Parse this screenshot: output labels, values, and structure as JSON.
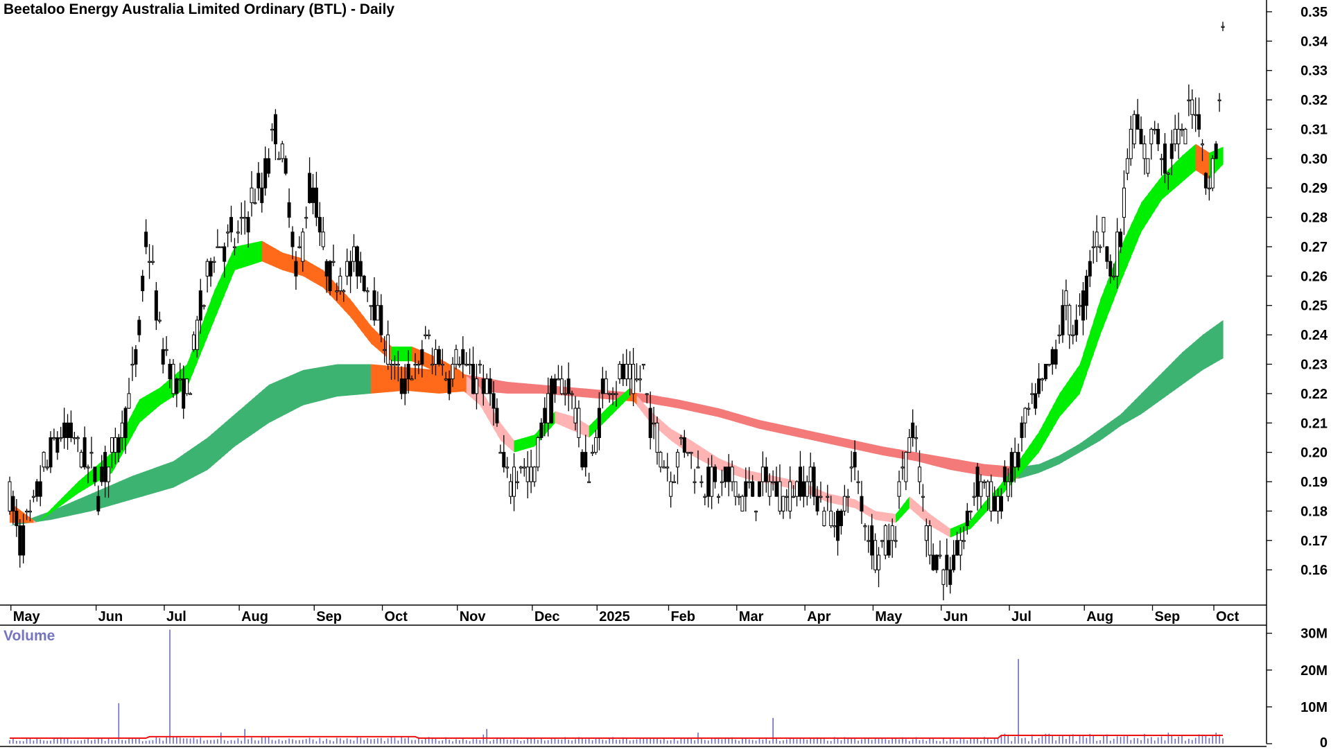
{
  "chart_data": {
    "type": "candlestick",
    "title": "Beetaloo Energy Australia Limited Ordinary (BTL) - Daily",
    "volume_label": "Volume",
    "price_axis": {
      "side": "right",
      "ticks": [
        "0.35",
        "0.34",
        "0.33",
        "0.32",
        "0.31",
        "0.30",
        "0.29",
        "0.28",
        "0.27",
        "0.26",
        "0.25",
        "0.24",
        "0.23",
        "0.22",
        "0.21",
        "0.20",
        "0.19",
        "0.18",
        "0.17",
        "0.16"
      ],
      "ylim": [
        0.148,
        0.354
      ]
    },
    "volume_axis": {
      "side": "right",
      "ticks": [
        "30M",
        "20M",
        "10M",
        "0"
      ],
      "ylim_millions": [
        0,
        32
      ]
    },
    "month_labels": [
      "May",
      "Jun",
      "Jul",
      "Aug",
      "Sep",
      "Oct",
      "Nov",
      "Dec",
      "2025",
      "Feb",
      "Mar",
      "Apr",
      "May",
      "Jun",
      "Jul",
      "Aug",
      "Sep",
      "Oct"
    ],
    "price_path": [
      [
        0,
        0.185
      ],
      [
        3,
        0.17
      ],
      [
        6,
        0.177
      ],
      [
        10,
        0.193
      ],
      [
        14,
        0.205
      ],
      [
        18,
        0.207
      ],
      [
        22,
        0.198
      ],
      [
        26,
        0.188
      ],
      [
        30,
        0.198
      ],
      [
        34,
        0.213
      ],
      [
        38,
        0.24
      ],
      [
        40,
        0.272
      ],
      [
        42,
        0.262
      ],
      [
        44,
        0.24
      ],
      [
        48,
        0.225
      ],
      [
        52,
        0.218
      ],
      [
        56,
        0.248
      ],
      [
        60,
        0.268
      ],
      [
        64,
        0.272
      ],
      [
        68,
        0.275
      ],
      [
        72,
        0.288
      ],
      [
        74,
        0.288
      ],
      [
        76,
        0.3
      ],
      [
        78,
        0.31
      ],
      [
        80,
        0.3
      ],
      [
        82,
        0.285
      ],
      [
        84,
        0.26
      ],
      [
        86,
        0.272
      ],
      [
        88,
        0.29
      ],
      [
        90,
        0.285
      ],
      [
        92,
        0.268
      ],
      [
        94,
        0.26
      ],
      [
        98,
        0.262
      ],
      [
        102,
        0.265
      ],
      [
        106,
        0.255
      ],
      [
        108,
        0.245
      ],
      [
        110,
        0.24
      ],
      [
        112,
        0.23
      ],
      [
        114,
        0.225
      ],
      [
        116,
        0.222
      ],
      [
        118,
        0.23
      ],
      [
        120,
        0.225
      ],
      [
        122,
        0.242
      ],
      [
        124,
        0.23
      ],
      [
        126,
        0.235
      ],
      [
        128,
        0.225
      ],
      [
        130,
        0.23
      ],
      [
        132,
        0.235
      ],
      [
        134,
        0.228
      ],
      [
        136,
        0.225
      ],
      [
        138,
        0.228
      ],
      [
        140,
        0.22
      ],
      [
        142,
        0.22
      ],
      [
        144,
        0.2
      ],
      [
        146,
        0.19
      ],
      [
        148,
        0.192
      ],
      [
        150,
        0.196
      ],
      [
        152,
        0.192
      ],
      [
        154,
        0.193
      ],
      [
        156,
        0.208
      ],
      [
        158,
        0.215
      ],
      [
        160,
        0.22
      ],
      [
        162,
        0.225
      ],
      [
        164,
        0.222
      ],
      [
        166,
        0.215
      ],
      [
        168,
        0.2
      ],
      [
        170,
        0.192
      ],
      [
        172,
        0.205
      ],
      [
        174,
        0.22
      ],
      [
        176,
        0.225
      ],
      [
        178,
        0.222
      ],
      [
        180,
        0.228
      ],
      [
        182,
        0.225
      ],
      [
        184,
        0.222
      ],
      [
        186,
        0.228
      ],
      [
        188,
        0.21
      ],
      [
        190,
        0.205
      ],
      [
        192,
        0.198
      ],
      [
        194,
        0.192
      ],
      [
        196,
        0.2
      ],
      [
        198,
        0.205
      ],
      [
        200,
        0.2
      ],
      [
        202,
        0.194
      ],
      [
        204,
        0.19
      ],
      [
        208,
        0.188
      ],
      [
        212,
        0.19
      ],
      [
        216,
        0.185
      ],
      [
        220,
        0.188
      ],
      [
        224,
        0.19
      ],
      [
        228,
        0.185
      ],
      [
        232,
        0.19
      ],
      [
        236,
        0.188
      ],
      [
        240,
        0.18
      ],
      [
        244,
        0.175
      ],
      [
        246,
        0.19
      ],
      [
        248,
        0.195
      ],
      [
        250,
        0.182
      ],
      [
        252,
        0.172
      ],
      [
        254,
        0.168
      ],
      [
        256,
        0.168
      ],
      [
        258,
        0.17
      ],
      [
        260,
        0.175
      ],
      [
        262,
        0.195
      ],
      [
        264,
        0.2
      ],
      [
        266,
        0.205
      ],
      [
        268,
        0.18
      ],
      [
        270,
        0.17
      ],
      [
        272,
        0.165
      ],
      [
        274,
        0.16
      ],
      [
        276,
        0.158
      ],
      [
        278,
        0.165
      ],
      [
        280,
        0.17
      ],
      [
        282,
        0.18
      ],
      [
        284,
        0.19
      ],
      [
        286,
        0.19
      ],
      [
        288,
        0.185
      ],
      [
        290,
        0.18
      ],
      [
        292,
        0.19
      ],
      [
        294,
        0.192
      ],
      [
        296,
        0.2
      ],
      [
        298,
        0.21
      ],
      [
        300,
        0.215
      ],
      [
        302,
        0.22
      ],
      [
        304,
        0.225
      ],
      [
        306,
        0.23
      ],
      [
        308,
        0.24
      ],
      [
        310,
        0.25
      ],
      [
        312,
        0.242
      ],
      [
        314,
        0.245
      ],
      [
        316,
        0.255
      ],
      [
        318,
        0.27
      ],
      [
        320,
        0.275
      ],
      [
        322,
        0.27
      ],
      [
        324,
        0.262
      ],
      [
        326,
        0.272
      ],
      [
        328,
        0.3
      ],
      [
        330,
        0.312
      ],
      [
        332,
        0.305
      ],
      [
        334,
        0.3
      ],
      [
        336,
        0.31
      ],
      [
        338,
        0.302
      ],
      [
        340,
        0.295
      ],
      [
        342,
        0.308
      ],
      [
        344,
        0.305
      ],
      [
        346,
        0.315
      ],
      [
        348,
        0.318
      ],
      [
        350,
        0.305
      ],
      [
        352,
        0.29
      ],
      [
        354,
        0.302
      ],
      [
        355,
        0.325
      ],
      [
        356,
        0.343
      ]
    ],
    "emas": {
      "fast_top": [
        [
          0,
          0.183
        ],
        [
          8,
          0.176
        ],
        [
          20,
          0.19
        ],
        [
          30,
          0.2
        ],
        [
          38,
          0.218
        ],
        [
          44,
          0.222
        ],
        [
          52,
          0.23
        ],
        [
          60,
          0.255
        ],
        [
          66,
          0.27
        ],
        [
          74,
          0.272
        ],
        [
          80,
          0.268
        ],
        [
          86,
          0.266
        ],
        [
          92,
          0.262
        ],
        [
          100,
          0.252
        ],
        [
          106,
          0.243
        ],
        [
          112,
          0.236
        ],
        [
          118,
          0.236
        ],
        [
          126,
          0.232
        ],
        [
          132,
          0.228
        ],
        [
          138,
          0.222
        ],
        [
          144,
          0.21
        ],
        [
          148,
          0.204
        ],
        [
          154,
          0.206
        ],
        [
          160,
          0.214
        ],
        [
          166,
          0.212
        ],
        [
          170,
          0.209
        ],
        [
          176,
          0.216
        ],
        [
          182,
          0.222
        ],
        [
          188,
          0.214
        ],
        [
          194,
          0.208
        ],
        [
          200,
          0.204
        ],
        [
          208,
          0.198
        ],
        [
          216,
          0.194
        ],
        [
          224,
          0.192
        ],
        [
          232,
          0.19
        ],
        [
          240,
          0.186
        ],
        [
          248,
          0.184
        ],
        [
          254,
          0.18
        ],
        [
          260,
          0.179
        ],
        [
          264,
          0.185
        ],
        [
          270,
          0.179
        ],
        [
          276,
          0.174
        ],
        [
          282,
          0.177
        ],
        [
          286,
          0.183
        ],
        [
          290,
          0.188
        ],
        [
          296,
          0.197
        ],
        [
          302,
          0.207
        ],
        [
          308,
          0.22
        ],
        [
          314,
          0.23
        ],
        [
          320,
          0.252
        ],
        [
          326,
          0.27
        ],
        [
          332,
          0.285
        ],
        [
          338,
          0.294
        ],
        [
          344,
          0.301
        ],
        [
          348,
          0.305
        ],
        [
          352,
          0.302
        ],
        [
          356,
          0.304
        ]
      ],
      "fast_bottom": [
        [
          0,
          0.176
        ],
        [
          8,
          0.176
        ],
        [
          20,
          0.186
        ],
        [
          30,
          0.193
        ],
        [
          38,
          0.21
        ],
        [
          44,
          0.216
        ],
        [
          52,
          0.222
        ],
        [
          60,
          0.245
        ],
        [
          66,
          0.262
        ],
        [
          74,
          0.265
        ],
        [
          80,
          0.262
        ],
        [
          86,
          0.26
        ],
        [
          92,
          0.256
        ],
        [
          100,
          0.246
        ],
        [
          106,
          0.237
        ],
        [
          112,
          0.231
        ],
        [
          118,
          0.231
        ],
        [
          126,
          0.227
        ],
        [
          132,
          0.222
        ],
        [
          138,
          0.216
        ],
        [
          144,
          0.204
        ],
        [
          148,
          0.2
        ],
        [
          154,
          0.202
        ],
        [
          160,
          0.21
        ],
        [
          166,
          0.207
        ],
        [
          170,
          0.205
        ],
        [
          176,
          0.212
        ],
        [
          182,
          0.219
        ],
        [
          188,
          0.21
        ],
        [
          194,
          0.204
        ],
        [
          200,
          0.199
        ],
        [
          208,
          0.194
        ],
        [
          216,
          0.191
        ],
        [
          224,
          0.189
        ],
        [
          232,
          0.187
        ],
        [
          240,
          0.183
        ],
        [
          248,
          0.181
        ],
        [
          254,
          0.177
        ],
        [
          260,
          0.176
        ],
        [
          264,
          0.181
        ],
        [
          270,
          0.175
        ],
        [
          276,
          0.171
        ],
        [
          282,
          0.174
        ],
        [
          286,
          0.179
        ],
        [
          290,
          0.184
        ],
        [
          296,
          0.192
        ],
        [
          302,
          0.2
        ],
        [
          308,
          0.212
        ],
        [
          314,
          0.22
        ],
        [
          320,
          0.24
        ],
        [
          326,
          0.258
        ],
        [
          332,
          0.275
        ],
        [
          338,
          0.286
        ],
        [
          344,
          0.292
        ],
        [
          348,
          0.296
        ],
        [
          352,
          0.293
        ],
        [
          356,
          0.298
        ]
      ],
      "slow_top": [
        [
          0,
          0.175
        ],
        [
          12,
          0.18
        ],
        [
          24,
          0.186
        ],
        [
          36,
          0.192
        ],
        [
          48,
          0.197
        ],
        [
          58,
          0.205
        ],
        [
          66,
          0.213
        ],
        [
          76,
          0.223
        ],
        [
          86,
          0.228
        ],
        [
          96,
          0.23
        ],
        [
          106,
          0.23
        ],
        [
          116,
          0.229
        ],
        [
          126,
          0.228
        ],
        [
          136,
          0.226
        ],
        [
          146,
          0.224
        ],
        [
          156,
          0.223
        ],
        [
          166,
          0.222
        ],
        [
          176,
          0.221
        ],
        [
          186,
          0.22
        ],
        [
          196,
          0.218
        ],
        [
          208,
          0.215
        ],
        [
          220,
          0.211
        ],
        [
          232,
          0.208
        ],
        [
          244,
          0.205
        ],
        [
          256,
          0.202
        ],
        [
          266,
          0.2
        ],
        [
          276,
          0.198
        ],
        [
          286,
          0.196
        ],
        [
          296,
          0.195
        ],
        [
          302,
          0.196
        ],
        [
          308,
          0.199
        ],
        [
          314,
          0.203
        ],
        [
          320,
          0.208
        ],
        [
          326,
          0.213
        ],
        [
          332,
          0.22
        ],
        [
          338,
          0.227
        ],
        [
          344,
          0.234
        ],
        [
          350,
          0.24
        ],
        [
          356,
          0.245
        ]
      ],
      "slow_bottom": [
        [
          0,
          0.175
        ],
        [
          12,
          0.177
        ],
        [
          24,
          0.18
        ],
        [
          36,
          0.184
        ],
        [
          48,
          0.188
        ],
        [
          58,
          0.194
        ],
        [
          66,
          0.202
        ],
        [
          76,
          0.21
        ],
        [
          86,
          0.216
        ],
        [
          96,
          0.219
        ],
        [
          106,
          0.22
        ],
        [
          116,
          0.221
        ],
        [
          126,
          0.22
        ],
        [
          136,
          0.221
        ],
        [
          146,
          0.22
        ],
        [
          156,
          0.22
        ],
        [
          166,
          0.219
        ],
        [
          176,
          0.218
        ],
        [
          186,
          0.217
        ],
        [
          196,
          0.215
        ],
        [
          208,
          0.212
        ],
        [
          220,
          0.208
        ],
        [
          232,
          0.205
        ],
        [
          244,
          0.202
        ],
        [
          256,
          0.199
        ],
        [
          266,
          0.197
        ],
        [
          276,
          0.194
        ],
        [
          286,
          0.192
        ],
        [
          296,
          0.191
        ],
        [
          302,
          0.193
        ],
        [
          308,
          0.196
        ],
        [
          314,
          0.2
        ],
        [
          320,
          0.204
        ],
        [
          326,
          0.209
        ],
        [
          332,
          0.213
        ],
        [
          338,
          0.218
        ],
        [
          344,
          0.223
        ],
        [
          350,
          0.228
        ],
        [
          356,
          0.232
        ]
      ]
    },
    "volume_spikes_millions": [
      [
        32,
        11
      ],
      [
        47,
        31
      ],
      [
        62,
        3
      ],
      [
        69,
        4
      ],
      [
        139,
        2.5
      ],
      [
        140,
        4
      ],
      [
        202,
        3
      ],
      [
        224,
        7
      ],
      [
        296,
        23
      ],
      [
        340,
        3
      ],
      [
        354,
        3
      ]
    ],
    "volume_baseline_millions": 1.3,
    "volume_ma_millions": 1.5,
    "colors": {
      "fast_up": "#00ee00",
      "fast_down": "#ffb3b3",
      "fast_down_strong": "#ff6a1a",
      "slow_up": "#3cb371",
      "slow_down": "#f47a7a",
      "slow_down_strong": "#ff6a1a",
      "candle": "#000000",
      "volume": "#6b6bc0",
      "volume_ma": "#ee1111",
      "axis": "#000000"
    }
  }
}
